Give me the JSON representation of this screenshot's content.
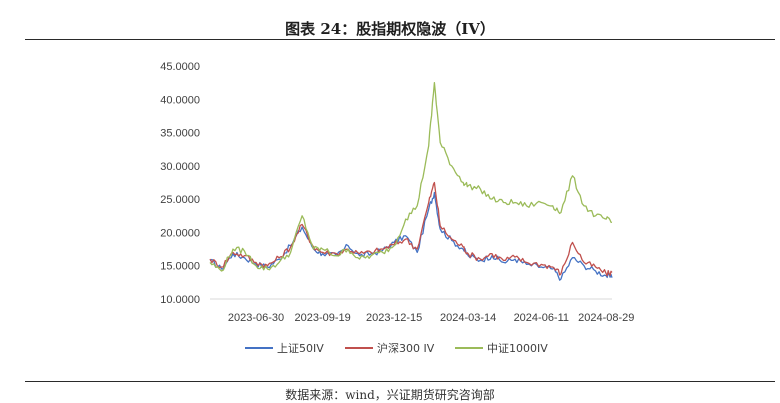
{
  "page": {
    "title": "图表 24：股指期权隐波（IV）",
    "source": "数据来源：wind，兴证期货研究咨询部"
  },
  "chart_data": {
    "type": "line",
    "title": "图表 24：股指期权隐波（IV）",
    "ylim": [
      10,
      45
    ],
    "yticks": [
      "10.0000",
      "15.0000",
      "20.0000",
      "25.0000",
      "30.0000",
      "35.0000",
      "40.0000",
      "45.0000"
    ],
    "xticks": [
      "2023-06-30",
      "2023-09-19",
      "2023-12-15",
      "2024-03-14",
      "2024-06-11",
      "2024-08-29"
    ],
    "x": [
      "2023-05-05",
      "2023-05-19",
      "2023-06-02",
      "2023-06-16",
      "2023-06-30",
      "2023-07-14",
      "2023-07-28",
      "2023-08-11",
      "2023-08-25",
      "2023-09-08",
      "2023-09-19",
      "2023-10-06",
      "2023-10-20",
      "2023-11-03",
      "2023-11-17",
      "2023-12-01",
      "2023-12-15",
      "2023-12-29",
      "2024-01-12",
      "2024-01-26",
      "2024-02-02",
      "2024-02-09",
      "2024-02-23",
      "2024-03-08",
      "2024-03-14",
      "2024-03-29",
      "2024-04-12",
      "2024-04-26",
      "2024-05-10",
      "2024-05-24",
      "2024-06-11",
      "2024-06-25",
      "2024-07-05",
      "2024-07-19",
      "2024-08-02",
      "2024-08-16",
      "2024-08-29",
      "2024-09-05"
    ],
    "series": [
      {
        "name": "上证50IV",
        "color": "#4472C4",
        "values": [
          15.8,
          14.5,
          16.8,
          16.2,
          15.3,
          14.8,
          16.0,
          18.0,
          20.8,
          17.5,
          16.8,
          16.5,
          18.0,
          16.5,
          16.8,
          17.3,
          18.5,
          19.5,
          17.0,
          23.5,
          26.0,
          20.5,
          18.8,
          17.5,
          16.5,
          15.8,
          16.5,
          15.5,
          16.0,
          15.2,
          14.8,
          14.5,
          13.0,
          16.2,
          15.0,
          14.2,
          13.5,
          13.2
        ]
      },
      {
        "name": "沪深300 IV",
        "color": "#C0504D",
        "values": [
          16.0,
          14.8,
          17.0,
          16.5,
          15.5,
          15.0,
          16.2,
          17.8,
          21.2,
          17.8,
          17.0,
          16.8,
          17.5,
          16.8,
          17.0,
          17.5,
          18.2,
          19.0,
          17.5,
          24.5,
          27.5,
          21.0,
          19.0,
          17.8,
          16.8,
          16.0,
          16.8,
          15.8,
          16.3,
          15.5,
          15.2,
          14.8,
          13.8,
          18.5,
          15.5,
          14.8,
          13.8,
          14.0
        ]
      },
      {
        "name": "中证1000IV",
        "color": "#9BBB59",
        "values": [
          15.5,
          14.2,
          17.5,
          17.2,
          15.0,
          14.5,
          15.5,
          17.0,
          22.5,
          17.5,
          17.5,
          16.5,
          17.5,
          16.0,
          16.5,
          17.0,
          18.0,
          22.0,
          24.0,
          33.0,
          42.5,
          33.5,
          30.0,
          27.5,
          27.0,
          26.5,
          25.0,
          24.5,
          24.5,
          24.0,
          24.5,
          24.0,
          23.0,
          28.5,
          24.0,
          22.5,
          22.0,
          21.5
        ]
      }
    ]
  }
}
